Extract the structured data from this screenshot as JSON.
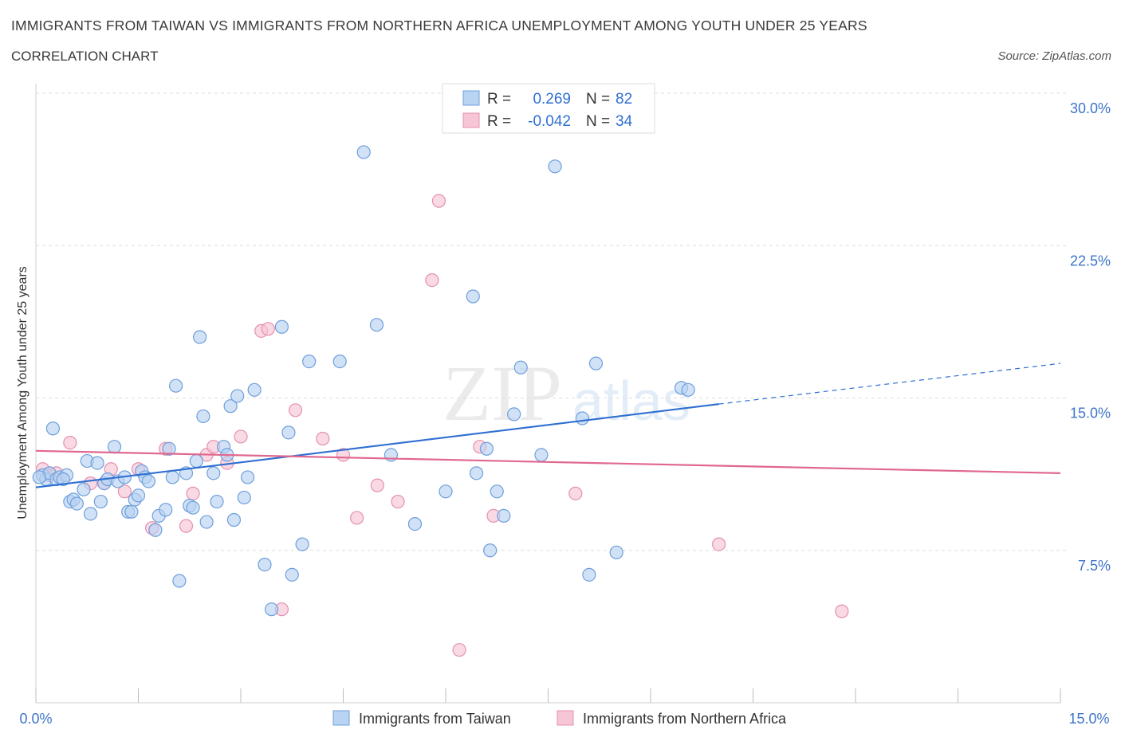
{
  "header": {
    "title": "IMMIGRANTS FROM TAIWAN VS IMMIGRANTS FROM NORTHERN AFRICA UNEMPLOYMENT AMONG YOUTH UNDER 25 YEARS",
    "subtitle": "CORRELATION CHART",
    "source": "Source: ZipAtlas.com"
  },
  "legend_box": {
    "row1_r_label": "R =",
    "row1_r_value": "0.269",
    "row1_n_label": "N =",
    "row1_n_value": "82",
    "row2_r_label": "R =",
    "row2_r_value": "-0.042",
    "row2_n_label": "N =",
    "row2_n_value": "34"
  },
  "watermark": {
    "zip": "ZIP",
    "atlas": "atlas"
  },
  "colors": {
    "taiwan_fill": "#b9d3f3",
    "taiwan_stroke": "#6e9fdb",
    "taiwan_line": "#2f6fd1",
    "africa_fill": "#f6c6d6",
    "africa_stroke": "#e58fb0",
    "africa_line": "#e0688f",
    "value_text": "#2f6fd1"
  },
  "chart_data": {
    "type": "scatter",
    "title": "IMMIGRANTS FROM TAIWAN VS IMMIGRANTS FROM NORTHERN AFRICA UNEMPLOYMENT AMONG YOUTH UNDER 25 YEARS",
    "xlabel": "",
    "ylabel": "Unemployment Among Youth under 25 years",
    "xlim": [
      0,
      15
    ],
    "ylim": [
      0,
      30
    ],
    "x_tick_labels": [
      "0.0%",
      "15.0%"
    ],
    "y_tick_labels": [
      "7.5%",
      "15.0%",
      "22.5%",
      "30.0%"
    ],
    "y_ticks": [
      7.5,
      15,
      22.5,
      30
    ],
    "grid": true,
    "legend_position": "bottom",
    "series": [
      {
        "name": "Immigrants from Taiwan",
        "r": 0.269,
        "n": 82,
        "trend": {
          "x0": 0,
          "y0": 10.6,
          "x1": 10.0,
          "y1": 14.7,
          "dash_x1": 15.0,
          "dash_y1": 16.7
        },
        "points": [
          [
            0.1,
            11.2
          ],
          [
            0.15,
            11.0
          ],
          [
            0.2,
            11.3
          ],
          [
            0.25,
            13.5
          ],
          [
            0.3,
            11.0
          ],
          [
            0.35,
            11.1
          ],
          [
            0.45,
            11.2
          ],
          [
            0.5,
            9.9
          ],
          [
            0.55,
            10.0
          ],
          [
            0.6,
            9.8
          ],
          [
            0.7,
            10.5
          ],
          [
            0.75,
            11.9
          ],
          [
            0.8,
            9.3
          ],
          [
            0.9,
            11.8
          ],
          [
            0.95,
            9.9
          ],
          [
            1.0,
            10.8
          ],
          [
            1.05,
            11.0
          ],
          [
            1.15,
            12.6
          ],
          [
            1.2,
            10.9
          ],
          [
            1.3,
            11.1
          ],
          [
            1.35,
            9.4
          ],
          [
            1.4,
            9.4
          ],
          [
            1.45,
            10.0
          ],
          [
            1.5,
            10.2
          ],
          [
            1.55,
            11.4
          ],
          [
            1.6,
            11.1
          ],
          [
            1.65,
            10.9
          ],
          [
            1.75,
            8.5
          ],
          [
            1.8,
            9.2
          ],
          [
            1.9,
            9.5
          ],
          [
            1.95,
            12.5
          ],
          [
            2.0,
            11.1
          ],
          [
            2.05,
            15.6
          ],
          [
            2.1,
            6.0
          ],
          [
            2.2,
            11.3
          ],
          [
            2.25,
            9.7
          ],
          [
            2.3,
            9.6
          ],
          [
            2.35,
            11.9
          ],
          [
            2.4,
            18.0
          ],
          [
            2.45,
            14.1
          ],
          [
            2.5,
            8.9
          ],
          [
            2.6,
            11.3
          ],
          [
            2.65,
            9.9
          ],
          [
            2.75,
            12.6
          ],
          [
            2.8,
            12.2
          ],
          [
            2.85,
            14.6
          ],
          [
            2.9,
            9.0
          ],
          [
            2.95,
            15.1
          ],
          [
            3.05,
            10.1
          ],
          [
            3.1,
            11.1
          ],
          [
            3.2,
            15.4
          ],
          [
            3.35,
            6.8
          ],
          [
            3.45,
            4.6
          ],
          [
            3.6,
            18.5
          ],
          [
            3.7,
            13.3
          ],
          [
            3.75,
            6.3
          ],
          [
            3.9,
            7.8
          ],
          [
            4.0,
            16.8
          ],
          [
            4.45,
            16.8
          ],
          [
            4.8,
            27.1
          ],
          [
            4.99,
            18.6
          ],
          [
            5.2,
            12.2
          ],
          [
            5.55,
            8.8
          ],
          [
            6.0,
            10.4
          ],
          [
            6.4,
            20.0
          ],
          [
            6.45,
            11.3
          ],
          [
            6.6,
            12.5
          ],
          [
            6.65,
            7.5
          ],
          [
            6.75,
            10.4
          ],
          [
            6.85,
            9.2
          ],
          [
            7.0,
            14.2
          ],
          [
            7.1,
            16.5
          ],
          [
            7.4,
            12.2
          ],
          [
            7.6,
            26.4
          ],
          [
            8.0,
            14.0
          ],
          [
            8.1,
            6.3
          ],
          [
            8.2,
            16.7
          ],
          [
            8.5,
            7.4
          ],
          [
            9.45,
            15.5
          ],
          [
            9.55,
            15.4
          ],
          [
            0.05,
            11.1
          ],
          [
            0.4,
            11.0
          ]
        ]
      },
      {
        "name": "Immigrants from Northern Africa",
        "r": -0.042,
        "n": 34,
        "trend": {
          "x0": 0,
          "y0": 12.4,
          "x1": 15.0,
          "y1": 11.3
        },
        "points": [
          [
            0.1,
            11.5
          ],
          [
            0.2,
            11.2
          ],
          [
            0.3,
            11.3
          ],
          [
            0.5,
            12.8
          ],
          [
            0.8,
            10.8
          ],
          [
            1.0,
            10.8
          ],
          [
            1.1,
            11.5
          ],
          [
            1.3,
            10.4
          ],
          [
            1.5,
            11.5
          ],
          [
            1.7,
            8.6
          ],
          [
            1.9,
            12.5
          ],
          [
            2.2,
            8.7
          ],
          [
            2.3,
            10.3
          ],
          [
            2.5,
            12.2
          ],
          [
            2.6,
            12.6
          ],
          [
            2.8,
            11.8
          ],
          [
            3.0,
            13.1
          ],
          [
            3.3,
            18.3
          ],
          [
            3.4,
            18.4
          ],
          [
            3.6,
            4.6
          ],
          [
            3.8,
            14.4
          ],
          [
            4.2,
            13.0
          ],
          [
            4.5,
            12.2
          ],
          [
            4.7,
            9.1
          ],
          [
            5.0,
            10.7
          ],
          [
            5.3,
            9.9
          ],
          [
            5.8,
            20.8
          ],
          [
            5.9,
            24.7
          ],
          [
            6.2,
            2.6
          ],
          [
            6.5,
            12.6
          ],
          [
            6.7,
            9.2
          ],
          [
            7.9,
            10.3
          ],
          [
            10.0,
            7.8
          ],
          [
            11.8,
            4.5
          ]
        ]
      }
    ]
  },
  "legend": {
    "series1": "Immigrants from Taiwan",
    "series2": "Immigrants from Northern Africa"
  }
}
